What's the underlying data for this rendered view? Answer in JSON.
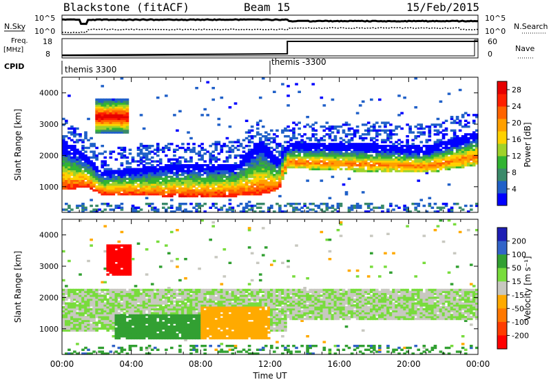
{
  "header": {
    "station": "Blackstone (fitACF)",
    "beam": "Beam 15",
    "date": "15/Feb/2015"
  },
  "top_strips": {
    "nsky_label": "N.Sky",
    "nsearch_label": "N.Search",
    "nsky_ticks": [
      "10^5",
      "10^0"
    ],
    "freq_label": "Freq.",
    "freq_unit": "[MHz]",
    "freq_ticks": [
      "18",
      "8"
    ],
    "nave_label": "Nave",
    "nave_ticks": [
      "60",
      "0"
    ],
    "cpid_label": "CPID",
    "cpid_segments": [
      {
        "name": "themis 3300",
        "start_hour": 0.0
      },
      {
        "name": "themis -3300",
        "start_hour": 12.0
      }
    ],
    "freq_step_hour": 13.0,
    "nave_drop_hours": [
      23.8,
      24.0
    ]
  },
  "colors": {
    "power": [
      "#0000ff",
      "#2060c8",
      "#3a8a6a",
      "#32b432",
      "#a0d22a",
      "#ffd200",
      "#ffa000",
      "#ff6400",
      "#ff2000",
      "#e60000"
    ],
    "velocity": [
      "#1e1eb4",
      "#3264c8",
      "#32a032",
      "#78dc3c",
      "#c8c8c0",
      "#ffaa00",
      "#ff7800",
      "#ff3c00",
      "#ff0000"
    ]
  },
  "chart_data": [
    {
      "type": "heatmap",
      "panel": "power",
      "ylabel": "Slant Range [km]",
      "yticks": [
        1000,
        2000,
        3000,
        4000
      ],
      "ylim": [
        180,
        4500
      ],
      "xlim_hours": [
        0,
        24
      ],
      "colorbar": {
        "label": "Power [dB]",
        "ticks": [
          "4",
          "8",
          "12",
          "16",
          "20",
          "24",
          "28"
        ],
        "range": [
          0,
          30
        ]
      },
      "main_band_km": [
        {
          "hour": 0.0,
          "low": 900,
          "high": 2500
        },
        {
          "hour": 1.5,
          "low": 1000,
          "high": 2000
        },
        {
          "hour": 2.2,
          "low": 760,
          "high": 1500
        },
        {
          "hour": 6.0,
          "low": 700,
          "high": 1700
        },
        {
          "hour": 10.0,
          "low": 700,
          "high": 1750
        },
        {
          "hour": 11.5,
          "low": 760,
          "high": 2500
        },
        {
          "hour": 12.5,
          "low": 920,
          "high": 1900
        },
        {
          "hour": 13.0,
          "low": 1600,
          "high": 2400
        },
        {
          "hour": 17.0,
          "low": 1500,
          "high": 2400
        },
        {
          "hour": 21.0,
          "low": 1450,
          "high": 2300
        },
        {
          "hour": 24.0,
          "low": 1700,
          "high": 2800
        }
      ],
      "patch_km": {
        "hour_start": 2.0,
        "hour_end": 3.8,
        "low": 2700,
        "high": 3800
      },
      "ground_scatter_km": [
        200,
        500
      ]
    },
    {
      "type": "heatmap",
      "panel": "velocity",
      "ylabel": "Slant Range [km]",
      "yticks": [
        1000,
        2000,
        3000,
        4000
      ],
      "ylim": [
        180,
        4500
      ],
      "xlim_hours": [
        0,
        24
      ],
      "xticks": [
        "00:00",
        "04:00",
        "08:00",
        "12:00",
        "16:00",
        "20:00",
        "00:00"
      ],
      "xlabel": "Time UT",
      "colorbar": {
        "label": "Velocity [m s⁻¹]",
        "ticks": [
          "200",
          "100",
          "50",
          "15",
          "-15",
          "-50",
          "-100",
          "-200"
        ],
        "range": [
          -250,
          250
        ]
      },
      "regions": [
        {
          "hour_start": 0.0,
          "hour_end": 13.0,
          "low": 900,
          "high": 2300,
          "velocity": 0
        },
        {
          "hour_start": 2.5,
          "hour_end": 4.0,
          "low": 2700,
          "high": 3700,
          "velocity": -220
        },
        {
          "hour_start": 3.0,
          "hour_end": 8.5,
          "low": 700,
          "high": 1500,
          "velocity": 60
        },
        {
          "hour_start": 8.0,
          "hour_end": 12.0,
          "low": 700,
          "high": 1700,
          "velocity": -60
        },
        {
          "hour_start": 13.0,
          "hour_end": 24.0,
          "low": 1300,
          "high": 2300,
          "velocity": 0
        }
      ]
    }
  ]
}
